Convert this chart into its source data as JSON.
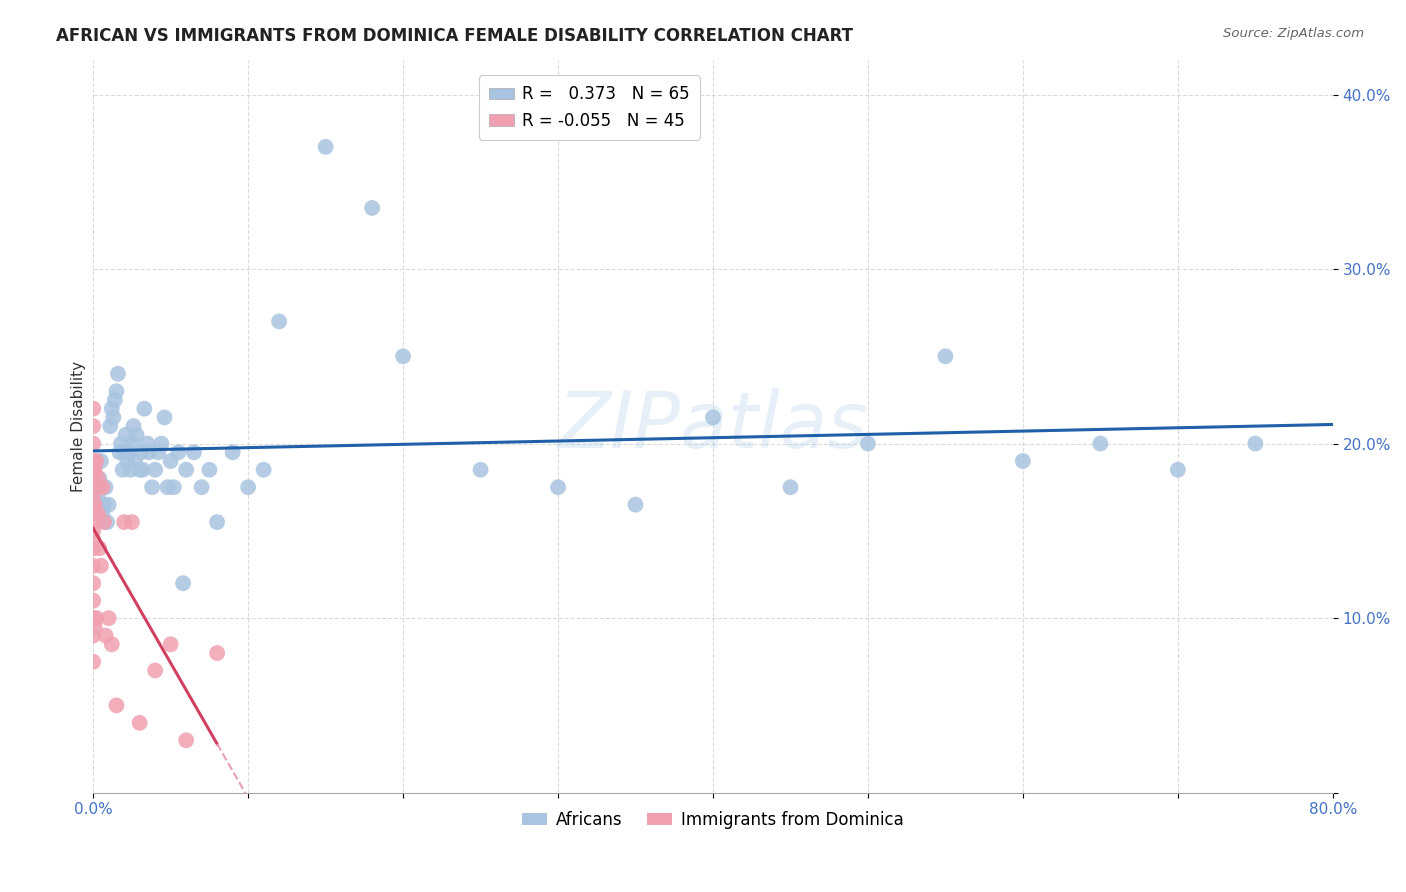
{
  "title": "AFRICAN VS IMMIGRANTS FROM DOMINICA FEMALE DISABILITY CORRELATION CHART",
  "source": "Source: ZipAtlas.com",
  "ylabel": "Female Disability",
  "xlim": [
    0.0,
    0.8
  ],
  "ylim": [
    0.0,
    0.42
  ],
  "R_african": 0.373,
  "N_african": 65,
  "R_dominica": -0.055,
  "N_dominica": 45,
  "african_color": "#a8c4e0",
  "dominica_color": "#f0a0b0",
  "african_line_color": "#2060a8",
  "dominica_line_color": "#d04060",
  "dominica_dash_color": "#e8a0b0",
  "watermark": "ZIPatlas",
  "background_color": "#ffffff",
  "grid_color": "#cccccc",
  "african_x": [
    0.003,
    0.004,
    0.005,
    0.006,
    0.007,
    0.008,
    0.009,
    0.01,
    0.011,
    0.012,
    0.013,
    0.014,
    0.015,
    0.016,
    0.017,
    0.018,
    0.019,
    0.02,
    0.021,
    0.022,
    0.023,
    0.024,
    0.025,
    0.026,
    0.027,
    0.028,
    0.03,
    0.031,
    0.032,
    0.033,
    0.035,
    0.036,
    0.038,
    0.04,
    0.042,
    0.044,
    0.046,
    0.048,
    0.05,
    0.052,
    0.055,
    0.058,
    0.06,
    0.065,
    0.07,
    0.075,
    0.08,
    0.09,
    0.1,
    0.11,
    0.12,
    0.15,
    0.18,
    0.2,
    0.25,
    0.3,
    0.35,
    0.4,
    0.45,
    0.5,
    0.55,
    0.6,
    0.65,
    0.7,
    0.75
  ],
  "african_y": [
    0.17,
    0.18,
    0.19,
    0.16,
    0.165,
    0.175,
    0.155,
    0.165,
    0.21,
    0.22,
    0.215,
    0.225,
    0.23,
    0.24,
    0.195,
    0.2,
    0.185,
    0.195,
    0.205,
    0.19,
    0.195,
    0.185,
    0.2,
    0.21,
    0.19,
    0.205,
    0.185,
    0.195,
    0.185,
    0.22,
    0.2,
    0.195,
    0.175,
    0.185,
    0.195,
    0.2,
    0.215,
    0.175,
    0.19,
    0.175,
    0.195,
    0.12,
    0.185,
    0.195,
    0.175,
    0.185,
    0.155,
    0.195,
    0.175,
    0.185,
    0.27,
    0.37,
    0.335,
    0.25,
    0.185,
    0.175,
    0.165,
    0.215,
    0.175,
    0.2,
    0.25,
    0.19,
    0.2,
    0.185,
    0.2
  ],
  "dominica_x": [
    0.0,
    0.0,
    0.0,
    0.0,
    0.0,
    0.0,
    0.0,
    0.0,
    0.0,
    0.0,
    0.0,
    0.0,
    0.0,
    0.0,
    0.0,
    0.0,
    0.0,
    0.0,
    0.0,
    0.0,
    0.001,
    0.001,
    0.001,
    0.001,
    0.002,
    0.002,
    0.002,
    0.003,
    0.003,
    0.004,
    0.004,
    0.005,
    0.006,
    0.007,
    0.008,
    0.01,
    0.012,
    0.015,
    0.02,
    0.025,
    0.03,
    0.04,
    0.05,
    0.06,
    0.08
  ],
  "dominica_y": [
    0.22,
    0.21,
    0.2,
    0.19,
    0.185,
    0.18,
    0.175,
    0.17,
    0.165,
    0.16,
    0.155,
    0.15,
    0.145,
    0.14,
    0.13,
    0.12,
    0.11,
    0.1,
    0.09,
    0.075,
    0.185,
    0.175,
    0.165,
    0.095,
    0.19,
    0.175,
    0.1,
    0.18,
    0.16,
    0.175,
    0.14,
    0.13,
    0.175,
    0.155,
    0.09,
    0.1,
    0.085,
    0.05,
    0.155,
    0.155,
    0.04,
    0.07,
    0.085,
    0.03,
    0.08
  ]
}
